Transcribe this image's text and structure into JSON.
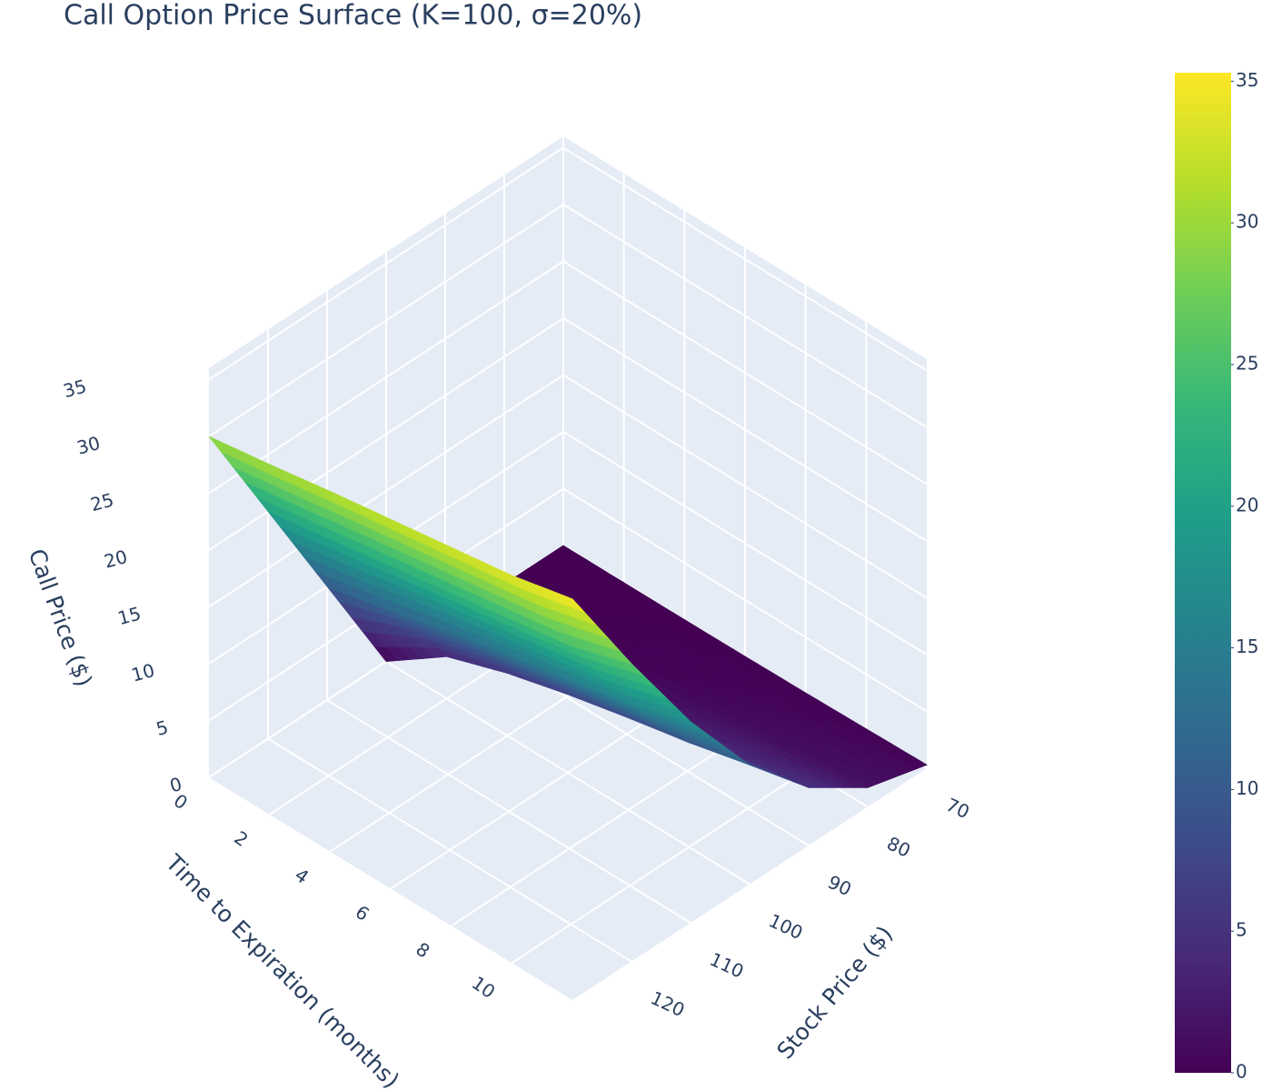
{
  "chart_data": {
    "type": "surface",
    "title": "Call Option Price Surface (K=100, σ=20%)",
    "x_title": "Stock Price ($)",
    "y_title": "Time to Expiration (months)",
    "z_title": "Call Price ($)",
    "x": [
      70,
      80,
      90,
      100,
      110,
      120,
      130
    ],
    "y": [
      0,
      2,
      4,
      6,
      8,
      10,
      12
    ],
    "z": [
      [
        0,
        0,
        0,
        0,
        10,
        20,
        30
      ],
      [
        0,
        0.03,
        0.6,
        3.7,
        11.2,
        20.9,
        30.8
      ],
      [
        0.01,
        0.2,
        1.5,
        5.5,
        12.6,
        21.8,
        31.7
      ],
      [
        0.04,
        0.5,
        2.5,
        6.9,
        13.8,
        22.7,
        32.5
      ],
      [
        0.1,
        0.9,
        3.4,
        8.1,
        14.9,
        23.6,
        33.3
      ],
      [
        0.2,
        1.3,
        4.2,
        9.2,
        16.0,
        24.5,
        34.1
      ],
      [
        0.3,
        1.7,
        5.1,
        10.5,
        17.7,
        26.2,
        35.3
      ]
    ],
    "colorscale": "Viridis",
    "xlim": [
      70,
      130
    ],
    "xticks": [
      70,
      80,
      90,
      100,
      110,
      120
    ],
    "ylim": [
      0,
      12
    ],
    "yticks": [
      0,
      2,
      4,
      6,
      8,
      10
    ],
    "zlim": [
      0,
      36
    ],
    "zticks": [
      0,
      5,
      10,
      15,
      20,
      25,
      30,
      35
    ],
    "colorbar_ticks": [
      0,
      5,
      10,
      15,
      20,
      25,
      30,
      35
    ]
  }
}
